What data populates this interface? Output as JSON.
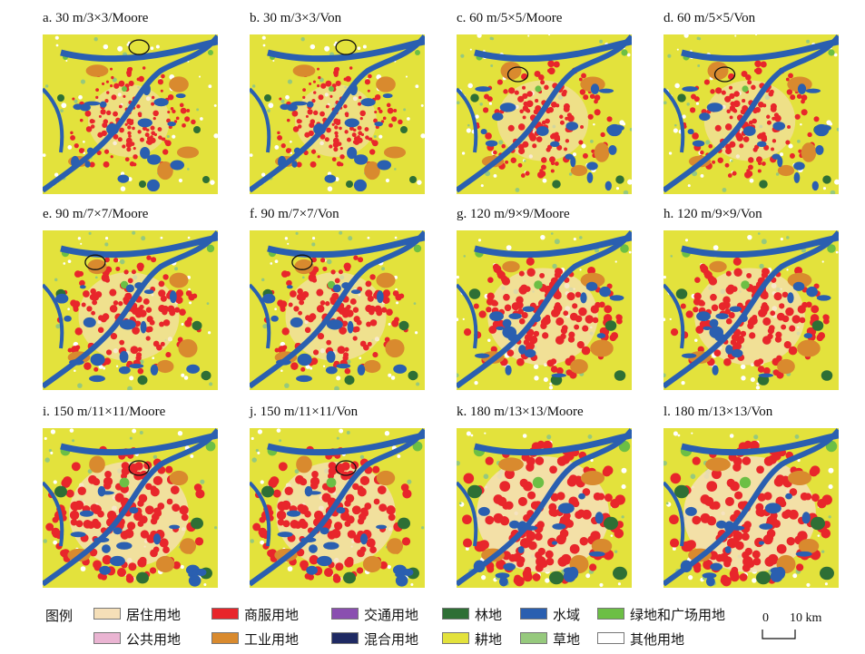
{
  "panels": [
    {
      "title": "a. 30 m/3×3/Moore",
      "urban": 0.0,
      "ellipse": [
        0.55,
        0.08
      ]
    },
    {
      "title": "b. 30 m/3×3/Von",
      "urban": 0.0,
      "ellipse": [
        0.55,
        0.08
      ]
    },
    {
      "title": "c. 60 m/5×5/Moore",
      "urban": 0.15,
      "ellipse": [
        0.35,
        0.25
      ]
    },
    {
      "title": "d. 60 m/5×5/Von",
      "urban": 0.15,
      "ellipse": [
        0.35,
        0.25
      ]
    },
    {
      "title": "e. 90 m/7×7/Moore",
      "urban": 0.3,
      "ellipse": [
        0.3,
        0.2
      ]
    },
    {
      "title": "f. 90 m/7×7/Von",
      "urban": 0.3,
      "ellipse": [
        0.3,
        0.2
      ]
    },
    {
      "title": "g. 120 m/9×9/Moore",
      "urban": 0.45,
      "ellipse": null
    },
    {
      "title": "h. 120 m/9×9/Von",
      "urban": 0.45,
      "ellipse": null
    },
    {
      "title": "i. 150 m/11×11/Moore",
      "urban": 0.6,
      "ellipse": [
        0.55,
        0.25
      ]
    },
    {
      "title": "j. 150 m/11×11/Von",
      "urban": 0.6,
      "ellipse": [
        0.55,
        0.25
      ]
    },
    {
      "title": "k. 180 m/13×13/Moore",
      "urban": 0.8,
      "ellipse": null
    },
    {
      "title": "l. 180 m/13×13/Von",
      "urban": 0.8,
      "ellipse": null
    }
  ],
  "legend": {
    "title": "图例",
    "items": [
      {
        "label": "居住用地",
        "color": "#f5dfb8"
      },
      {
        "label": "商服用地",
        "color": "#e8262b"
      },
      {
        "label": "交通用地",
        "color": "#8a4fb0"
      },
      {
        "label": "林地",
        "color": "#2e6f35"
      },
      {
        "label": "水域",
        "color": "#2a5fb0"
      },
      {
        "label": "绿地和广场用地",
        "color": "#6cbf45"
      },
      {
        "label": "公共用地",
        "color": "#eab4d2"
      },
      {
        "label": "工业用地",
        "color": "#d98a2e"
      },
      {
        "label": "混合用地",
        "color": "#1f2a63"
      },
      {
        "label": "耕地",
        "color": "#e3e23c"
      },
      {
        "label": "草地",
        "color": "#96c97d"
      },
      {
        "label": "其他用地",
        "color": "#ffffff"
      }
    ]
  },
  "scale_bar": {
    "start": "0",
    "end": "10 km"
  }
}
